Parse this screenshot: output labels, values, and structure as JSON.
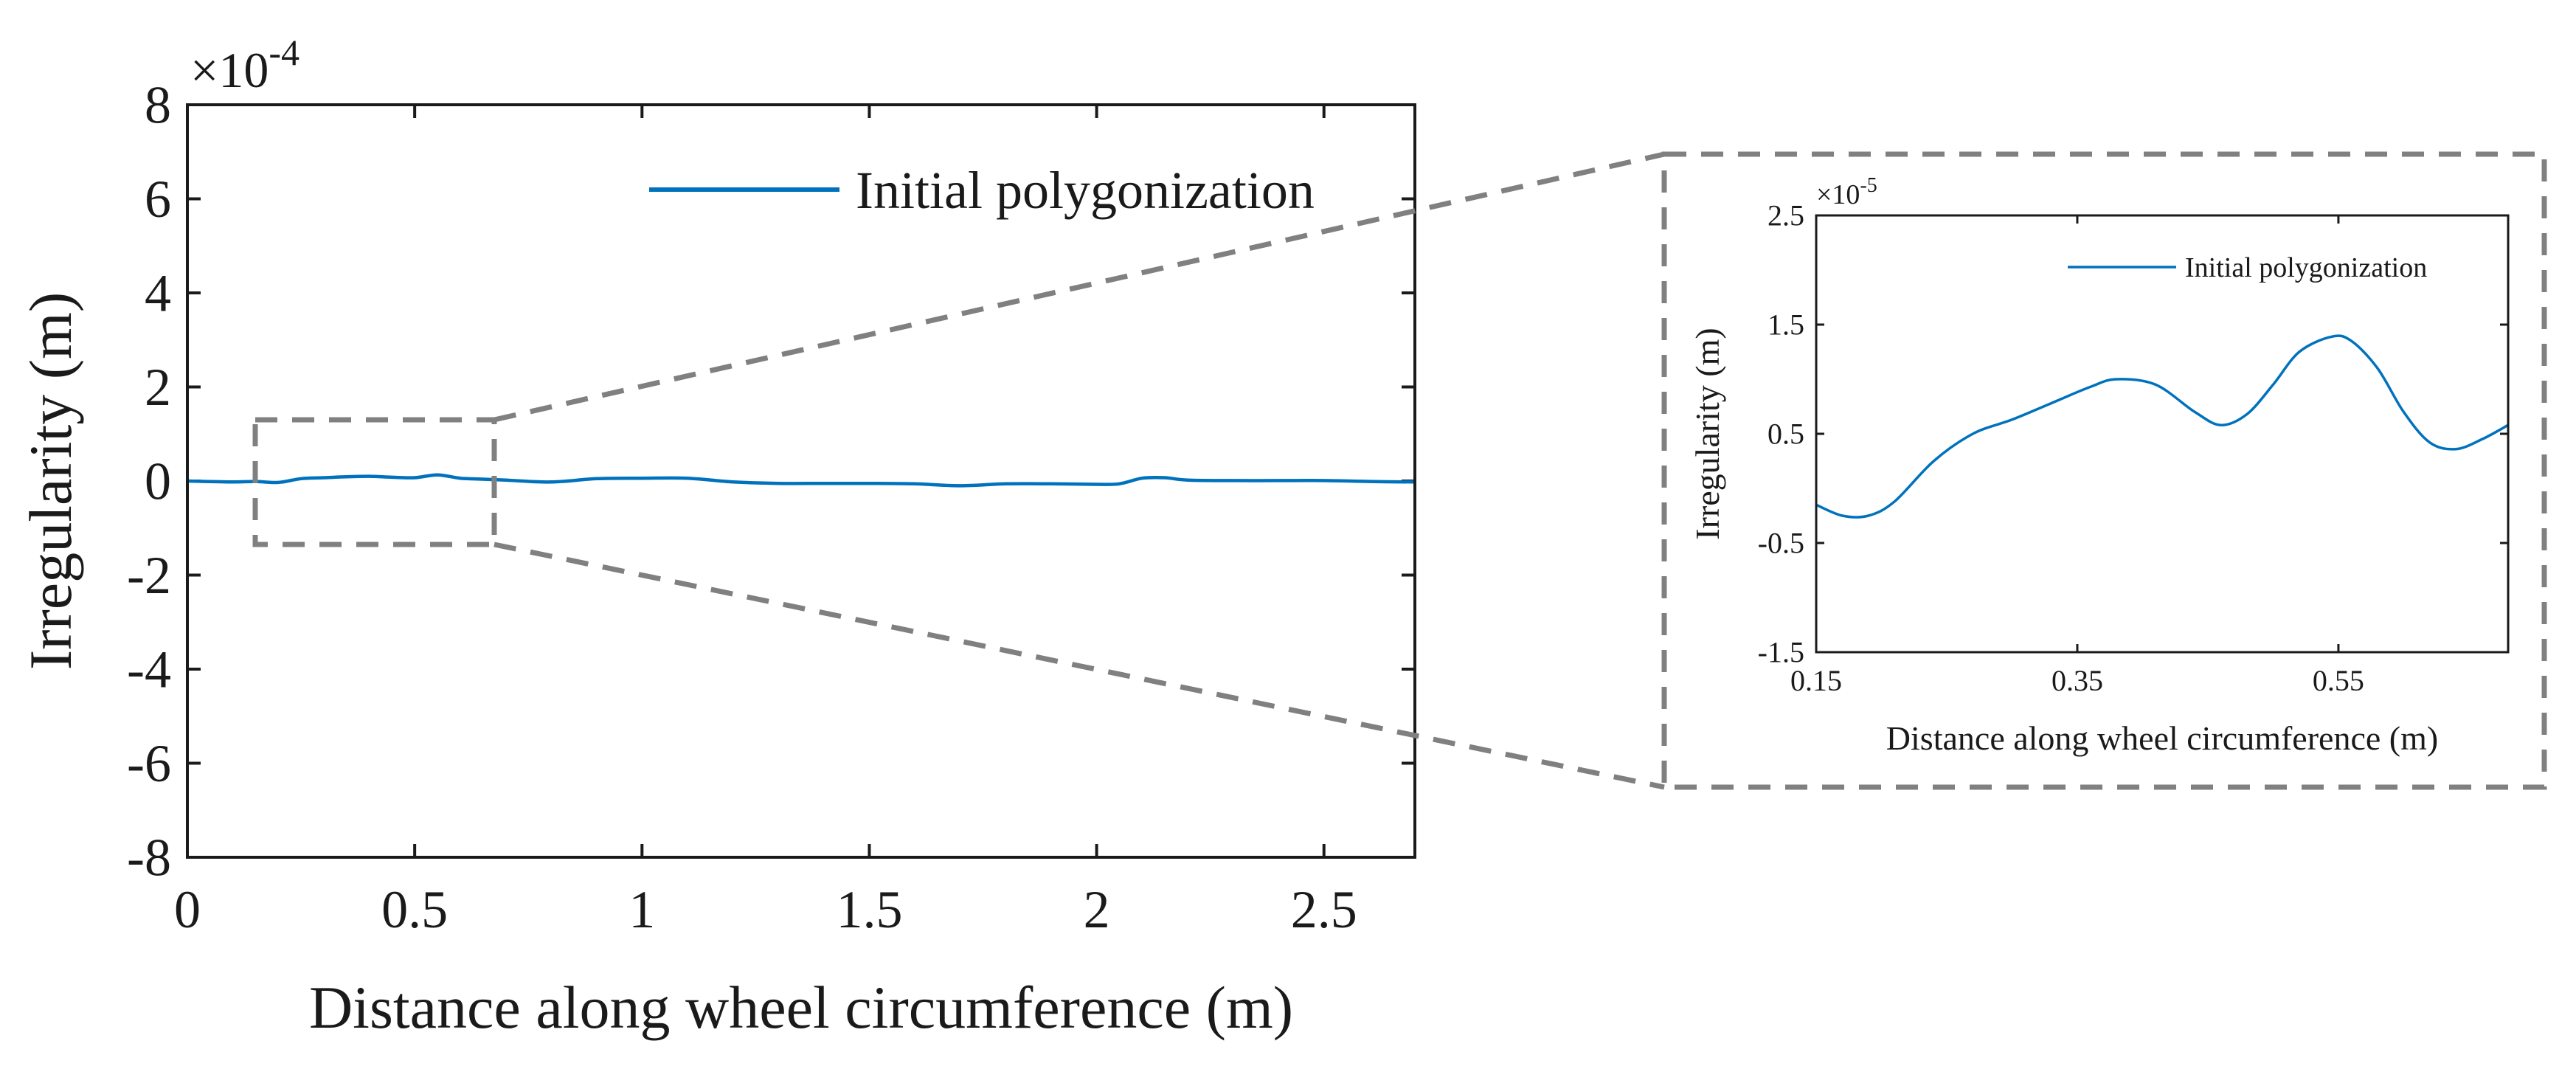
{
  "colors": {
    "series": "#0072BD",
    "axis": "#1a1a1a",
    "zoom_box": "#808080"
  },
  "chart_data": [
    {
      "type": "line",
      "panel": "main",
      "xlabel": "Distance along wheel circumference (m)",
      "ylabel": "Irregularity (m)",
      "y_multiplier": "×10",
      "y_multiplier_exp": "-4",
      "xlim": [
        0,
        2.7
      ],
      "ylim": [
        -8,
        8
      ],
      "xticks": [
        0,
        0.5,
        1,
        1.5,
        2,
        2.5
      ],
      "xtick_labels": [
        "0",
        "0.5",
        "1",
        "1.5",
        "2",
        "2.5"
      ],
      "yticks": [
        8,
        6,
        4,
        2,
        0,
        -2,
        -4,
        -6,
        -8
      ],
      "ytick_labels": [
        "8",
        "6",
        "4",
        "2",
        "0",
        "-2",
        "-4",
        "-6",
        "-8"
      ],
      "grid": false,
      "legend_position": "top-right",
      "series": [
        {
          "name": "Initial polygonization",
          "x": [
            0,
            0.1,
            0.15,
            0.2,
            0.25,
            0.3,
            0.35,
            0.4,
            0.45,
            0.5,
            0.55,
            0.6,
            0.65,
            0.7,
            0.8,
            0.9,
            1.0,
            1.1,
            1.2,
            1.3,
            1.4,
            1.5,
            1.6,
            1.7,
            1.8,
            1.9,
            2.0,
            2.05,
            2.1,
            2.15,
            2.2,
            2.3,
            2.4,
            2.5,
            2.6,
            2.7
          ],
          "y": [
            0,
            -0.02,
            -0.01,
            -0.03,
            0.05,
            0.07,
            0.09,
            0.1,
            0.08,
            0.07,
            0.13,
            0.06,
            0.04,
            0.02,
            -0.02,
            0.05,
            0.06,
            0.06,
            -0.02,
            -0.05,
            -0.05,
            -0.05,
            -0.06,
            -0.1,
            -0.06,
            -0.06,
            -0.07,
            -0.06,
            0.06,
            0.07,
            0.02,
            0.01,
            0.01,
            0.01,
            -0.01,
            -0.02
          ]
        }
      ]
    },
    {
      "type": "line",
      "panel": "inset",
      "xlabel": "Distance along wheel circumference (m)",
      "ylabel": "Irregularity (m)",
      "y_multiplier": "×10",
      "y_multiplier_exp": "-5",
      "xlim": [
        0.15,
        0.68
      ],
      "ylim": [
        -1.5,
        2.5
      ],
      "xticks": [
        0.15,
        0.35,
        0.55
      ],
      "xtick_labels": [
        "0.15",
        "0.35",
        "0.55"
      ],
      "yticks": [
        2.5,
        1.5,
        0.5,
        -0.5,
        -1.5
      ],
      "ytick_labels": [
        "2.5",
        "1.5",
        "0.5",
        "-0.5",
        "-1.5"
      ],
      "grid": false,
      "legend_position": "top-right",
      "series": [
        {
          "name": "Initial polygonization",
          "x": [
            0.15,
            0.17,
            0.19,
            0.21,
            0.24,
            0.27,
            0.3,
            0.33,
            0.36,
            0.38,
            0.41,
            0.44,
            0.46,
            0.48,
            0.5,
            0.52,
            0.545,
            0.56,
            0.58,
            0.6,
            0.62,
            0.64,
            0.66,
            0.68
          ],
          "y": [
            -0.15,
            -0.25,
            -0.25,
            -0.12,
            0.25,
            0.5,
            0.63,
            0.78,
            0.93,
            1.0,
            0.95,
            0.7,
            0.58,
            0.68,
            0.95,
            1.25,
            1.39,
            1.35,
            1.1,
            0.7,
            0.42,
            0.36,
            0.45,
            0.58
          ]
        }
      ]
    }
  ]
}
